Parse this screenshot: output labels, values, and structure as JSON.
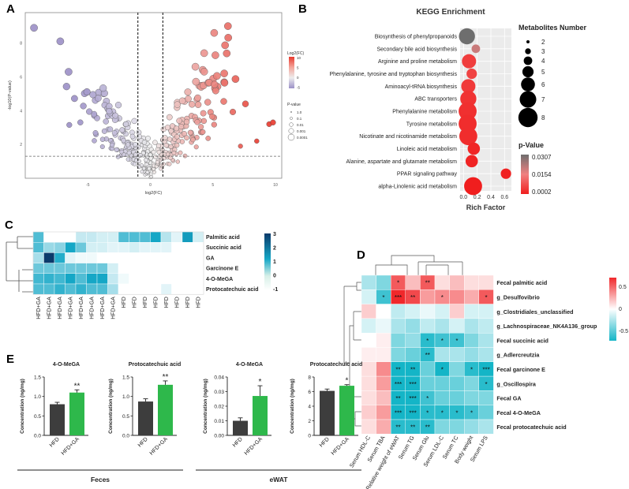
{
  "panels": {
    "A": "A",
    "B": "B",
    "C": "C",
    "D": "D",
    "E": "E"
  },
  "chart_data": [
    {
      "id": "A",
      "type": "scatter",
      "title": "",
      "xlabel": "log2(FC)",
      "ylabel": "-log10(P-value)",
      "xlim": [
        -10,
        10.5
      ],
      "ylim": [
        0,
        9.8
      ],
      "xticks": [
        "-5",
        "0",
        "5",
        "10"
      ],
      "yticks": [
        "2",
        "4",
        "6",
        "8"
      ],
      "fc_threshold": [
        -1,
        1
      ],
      "p_threshold": 1.3,
      "legend_color": {
        "title": "Log2(FC)",
        "labels": [
          "10",
          "5",
          "0",
          "-5"
        ],
        "colors": [
          "#e8392e",
          "#f4a59b",
          "#ededed",
          "#9b8fc7"
        ]
      },
      "legend_size": {
        "title": "P-value",
        "labels": [
          "1.0",
          "0.1",
          "0.01",
          "0.001",
          "0.0001"
        ]
      }
    },
    {
      "id": "B",
      "type": "scatter",
      "title": "KEGG Enrichment",
      "xlabel": "Rich Factor",
      "xlim": [
        -0.05,
        0.7
      ],
      "xticks": [
        "0.0",
        "0.2",
        "0.4",
        "0.6"
      ],
      "pathways": [
        "Biosynthesis of phenylpropanoids",
        "Secondary bile acid biosynthesis",
        "Arginine and proline metabolism",
        "Phenylalanine, tyrosine and tryptophan biosynthesis",
        "Aminoacyl-tRNA biosynthesis",
        "ABC transporters",
        "Phenylalanine metabolism",
        "Tyrosine metabolism",
        "Nicotinate and nicotinamide metabolism",
        "Linoleic acid metabolism",
        "Alanine, aspartate and glutamate metabolism",
        "PPAR signaling pathway",
        "alpha-Linolenic acid metabolism"
      ],
      "rich_factor": [
        0.05,
        0.18,
        0.08,
        0.12,
        0.07,
        0.07,
        0.06,
        0.06,
        0.07,
        0.15,
        0.12,
        0.62,
        0.14
      ],
      "metabolites_number": [
        6,
        2,
        5,
        3,
        5,
        6,
        7,
        7,
        7,
        4,
        4,
        3,
        7
      ],
      "p_value": [
        0.0307,
        0.02,
        0.005,
        0.006,
        0.0045,
        0.0035,
        0.003,
        0.0025,
        0.0025,
        0.0015,
        0.0012,
        0.0008,
        0.0002
      ],
      "size_legend": {
        "title": "Metabolites Number",
        "labels": [
          "2",
          "3",
          "4",
          "5",
          "6",
          "7",
          "8"
        ]
      },
      "color_legend": {
        "title": "p-Value",
        "labels": [
          "0.0307",
          "0.0154",
          "0.0002"
        ],
        "colors": [
          "#6e6e6e",
          "#f08080",
          "#f01e1e"
        ]
      }
    },
    {
      "id": "C",
      "type": "heatmap",
      "rows": [
        "Palmitic acid",
        "Succinic acid",
        "GA",
        "Garcinone E",
        "4-O-MeGA",
        "Protocatechuic acid"
      ],
      "cols": [
        "HFD+GA",
        "HFD+GA",
        "HFD+GA",
        "HFD+GA",
        "HFD+GA",
        "HFD+GA",
        "HFD+GA",
        "HFD+GA",
        "HFD",
        "HFD",
        "HFD",
        "HFD",
        "HFD",
        "HFD",
        "HFD",
        "HFD"
      ],
      "values": [
        [
          1.2,
          0,
          0,
          0,
          0.4,
          0.4,
          0.3,
          0.3,
          1.2,
          1.2,
          1.2,
          1.8,
          0.5,
          0.2,
          2.2,
          0.3
        ],
        [
          1.2,
          0.7,
          0.8,
          2.0,
          1.0,
          0.3,
          0.3,
          0.2,
          0.2,
          0.3,
          0.2,
          0.2,
          0.2,
          0,
          0,
          0
        ],
        [
          0.6,
          4.0,
          1.5,
          0.2,
          0.1,
          0.1,
          0,
          0,
          0,
          0,
          0,
          0,
          0,
          0,
          0,
          0
        ],
        [
          1.0,
          1.0,
          1.0,
          1.0,
          1.0,
          1.0,
          1.0,
          0.3,
          0,
          0,
          0,
          0,
          0,
          0,
          0,
          0
        ],
        [
          1.3,
          1.4,
          1.3,
          1.6,
          1.2,
          1.6,
          1.6,
          0.4,
          0.1,
          0,
          0,
          0,
          0,
          0,
          0,
          0
        ],
        [
          1.2,
          1.2,
          1.4,
          1.2,
          1.4,
          1.2,
          1.2,
          0.6,
          0,
          0,
          0,
          0,
          0.2,
          0,
          0,
          0
        ]
      ],
      "scale_labels": [
        "3",
        "2",
        "1",
        "0",
        "-1"
      ]
    },
    {
      "id": "D",
      "type": "heatmap",
      "rows": [
        "Fecal palmitic acid",
        "g_Desulfovibrio",
        "g_Clostridiales_unclassified",
        "g_Lachnospiraceae_NK4A136_group",
        "Fecal succinic acid",
        "g_Adlercreutzia",
        "Fecal garcinone E",
        "g_Oscillospira",
        "Fecal GA",
        "Fecal 4-O-MeGA",
        "Fecal protocatechuic acid"
      ],
      "cols": [
        "Serum HDL-C",
        "Serum TBA",
        "Relative weight of eWAT",
        "Serum TG",
        "Serum Glu",
        "Serum LDL-C",
        "Serum TC",
        "Body weight",
        "Serum LPS"
      ],
      "values": [
        [
          -0.2,
          -0.3,
          0.5,
          0.2,
          0.5,
          0.1,
          0.2,
          0.1,
          0.1
        ],
        [
          -0.1,
          -0.45,
          0.65,
          0.55,
          0.3,
          0.35,
          0.35,
          0.25,
          0.5
        ],
        [
          0.15,
          0.0,
          -0.15,
          -0.1,
          -0.05,
          -0.1,
          0.15,
          -0.1,
          -0.1
        ],
        [
          -0.1,
          -0.05,
          -0.2,
          -0.25,
          -0.15,
          -0.2,
          -0.1,
          -0.2,
          -0.15
        ],
        [
          0.0,
          0.05,
          -0.3,
          -0.25,
          -0.5,
          -0.45,
          -0.45,
          -0.3,
          -0.2
        ],
        [
          0.05,
          0.05,
          -0.3,
          -0.35,
          -0.5,
          -0.2,
          -0.2,
          -0.25,
          -0.2
        ],
        [
          0.1,
          0.35,
          -0.55,
          -0.55,
          -0.35,
          -0.55,
          -0.3,
          -0.5,
          -0.55
        ],
        [
          0.1,
          0.3,
          -0.55,
          -0.55,
          -0.35,
          -0.35,
          -0.35,
          -0.3,
          -0.5
        ],
        [
          0.1,
          0.2,
          -0.6,
          -0.55,
          -0.45,
          -0.35,
          -0.35,
          -0.3,
          -0.3
        ],
        [
          0.15,
          0.3,
          -0.6,
          -0.6,
          -0.5,
          -0.5,
          -0.5,
          -0.45,
          -0.35
        ],
        [
          0.1,
          0.25,
          -0.5,
          -0.5,
          -0.5,
          -0.3,
          -0.3,
          -0.25,
          -0.2
        ]
      ],
      "stars": [
        [
          "",
          "",
          "*",
          "",
          "**",
          "",
          "",
          "",
          ""
        ],
        [
          "",
          "*",
          "***",
          "**",
          "",
          "*",
          "",
          "",
          "*"
        ],
        [
          "",
          "",
          "",
          "",
          "",
          "",
          "",
          "",
          ""
        ],
        [
          "",
          "",
          "",
          "",
          "",
          "",
          "",
          "",
          ""
        ],
        [
          "",
          "",
          "",
          "",
          "*",
          "*",
          "*",
          "",
          ""
        ],
        [
          "",
          "",
          "",
          "",
          "**",
          "",
          "",
          "",
          ""
        ],
        [
          "",
          "",
          "**",
          "**",
          "",
          "*",
          "",
          "*",
          "***"
        ],
        [
          "",
          "",
          "***",
          "***",
          "",
          "",
          "",
          "",
          "*"
        ],
        [
          "",
          "",
          "**",
          "***",
          "*",
          "",
          "",
          "",
          ""
        ],
        [
          "",
          "",
          "***",
          "***",
          "*",
          "*",
          "*",
          "*",
          ""
        ],
        [
          "",
          "",
          "**",
          "**",
          "**",
          "",
          "",
          "",
          ""
        ]
      ],
      "scale_labels": [
        "0.5",
        "0",
        "-0.5"
      ]
    },
    {
      "id": "E",
      "type": "bar",
      "subplots": [
        {
          "title": "4-O-MeGA",
          "ylabel": "Concentration (ng/mg)",
          "categories": [
            "HFD",
            "HFD+GA"
          ],
          "values": [
            0.8,
            1.1
          ],
          "errors": [
            0.05,
            0.07
          ],
          "ylim": [
            0,
            1.5
          ],
          "yticks": [
            "0.0",
            "0.5",
            "1.0",
            "1.5"
          ],
          "sig": "**",
          "group": "Feces"
        },
        {
          "title": "Protocatechuic acid",
          "ylabel": "Concentration (ng/mg)",
          "categories": [
            "HFD",
            "HFD+GA"
          ],
          "values": [
            0.87,
            1.3
          ],
          "errors": [
            0.07,
            0.1
          ],
          "ylim": [
            0,
            1.5
          ],
          "yticks": [
            "0.0",
            "0.5",
            "1.0",
            "1.5"
          ],
          "sig": "**",
          "group": "Feces"
        },
        {
          "title": "4-O-MeGA",
          "ylabel": "Concentration (ng/mg)",
          "categories": [
            "HFD",
            "HFD+GA"
          ],
          "values": [
            0.01,
            0.027
          ],
          "errors": [
            0.002,
            0.007
          ],
          "ylim": [
            0,
            0.04
          ],
          "yticks": [
            "0.00",
            "0.01",
            "0.02",
            "0.03",
            "0.04"
          ],
          "sig": "*",
          "group": "eWAT"
        },
        {
          "title": "Protocatechuic acid",
          "ylabel": "Concentration (ng/mg)",
          "categories": [
            "HFD",
            "HFD+GA"
          ],
          "values": [
            6.1,
            6.8
          ],
          "errors": [
            0.25,
            0.15
          ],
          "ylim": [
            0,
            8
          ],
          "yticks": [
            "0",
            "2",
            "4",
            "6",
            "8"
          ],
          "sig": "*",
          "group": "eWAT"
        }
      ],
      "groups": [
        "Feces",
        "eWAT"
      ],
      "colors": {
        "HFD": "#3d3d3d",
        "HFD+GA": "#2eb84b"
      }
    }
  ]
}
